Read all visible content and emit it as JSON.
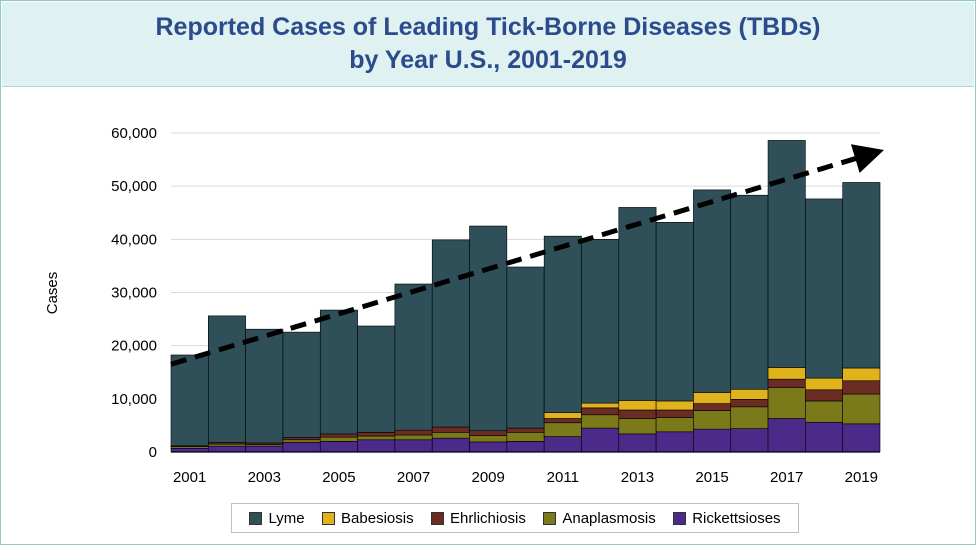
{
  "title": {
    "line1": "Reported Cases of Leading Tick-Borne Diseases (TBDs)",
    "line2": "by Year U.S., 2001-2019"
  },
  "chart_data": {
    "type": "bar",
    "stacked": true,
    "title": "Reported Cases of Leading Tick-Borne Diseases (TBDs) by Year U.S., 2001-2019",
    "xlabel": "",
    "ylabel": "Cases",
    "ylim": [
      0,
      60000
    ],
    "yticks": [
      "0",
      "10,000",
      "20,000",
      "30,000",
      "40,000",
      "50,000",
      "60,000"
    ],
    "ytick_values": [
      0,
      10000,
      20000,
      30000,
      40000,
      50000,
      60000
    ],
    "categories": [
      "2001",
      "2002",
      "2003",
      "2004",
      "2005",
      "2006",
      "2007",
      "2008",
      "2009",
      "2010",
      "2011",
      "2012",
      "2013",
      "2014",
      "2015",
      "2016",
      "2017",
      "2018",
      "2019"
    ],
    "xtick_labels": [
      "2001",
      "",
      "2003",
      "",
      "2005",
      "",
      "2007",
      "",
      "2009",
      "",
      "2011",
      "",
      "2013",
      "",
      "2015",
      "",
      "2017",
      "",
      "2019"
    ],
    "series": [
      {
        "name": "Rickettsioses",
        "color": "#4b2a8a",
        "values": [
          700,
          1100,
          1100,
          1800,
          2000,
          2300,
          2300,
          2600,
          1900,
          2000,
          2900,
          4500,
          3400,
          3800,
          4300,
          4400,
          6300,
          5600,
          5300
        ]
      },
      {
        "name": "Anaplasmosis",
        "color": "#7a7a1a",
        "values": [
          300,
          400,
          300,
          500,
          800,
          700,
          900,
          1100,
          1200,
          1700,
          2600,
          2500,
          2900,
          2700,
          3500,
          4100,
          5800,
          4000,
          5600
        ]
      },
      {
        "name": "Ehrlichiosis",
        "color": "#6b2c23",
        "values": [
          150,
          300,
          300,
          450,
          600,
          700,
          900,
          1000,
          900,
          800,
          800,
          1300,
          1600,
          1400,
          1300,
          1400,
          1600,
          2100,
          2500
        ]
      },
      {
        "name": "Babesiosis",
        "color": "#e0b21c",
        "values": [
          0,
          0,
          0,
          0,
          0,
          0,
          0,
          0,
          0,
          0,
          1100,
          900,
          1800,
          1700,
          2100,
          1900,
          2200,
          2200,
          2400
        ]
      },
      {
        "name": "Lyme",
        "color": "#2f5058",
        "values": [
          17100,
          23800,
          21400,
          19800,
          23300,
          20000,
          27500,
          35200,
          38500,
          30300,
          33200,
          30800,
          36300,
          33600,
          38100,
          36500,
          42700,
          33700,
          34900
        ]
      }
    ],
    "legend_order": [
      "Lyme",
      "Babesiosis",
      "Ehrlichiosis",
      "Anaplasmosis",
      "Rickettsioses"
    ],
    "legend_position": "bottom",
    "grid": true,
    "trend_arrow": {
      "style": "dashed",
      "color": "#000000",
      "start": {
        "x": "2001",
        "y": 16500
      },
      "end": {
        "x": "2019",
        "y": 56500
      }
    }
  }
}
